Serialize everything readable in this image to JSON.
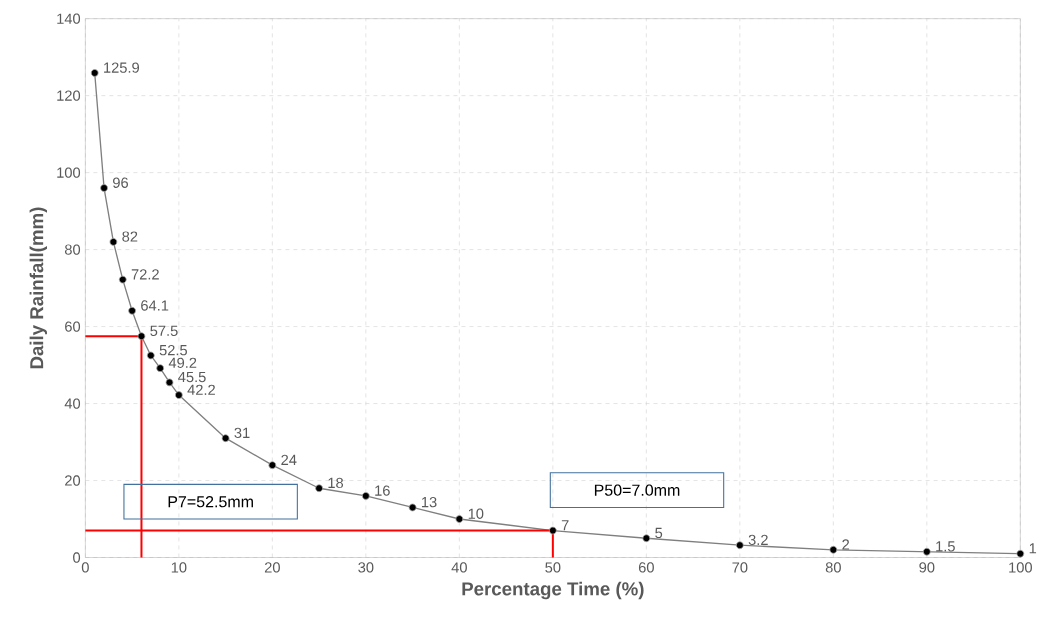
{
  "chart_data": {
    "type": "line",
    "xlabel": "Percentage Time (%)",
    "ylabel": "Daily Rainfall(mm)",
    "xlim": [
      0,
      100
    ],
    "xticks": [
      0,
      10,
      20,
      30,
      40,
      50,
      60,
      70,
      80,
      90,
      100
    ],
    "ylim": [
      0,
      140
    ],
    "yticks": [
      0,
      20,
      40,
      60,
      80,
      100,
      120,
      140
    ],
    "grid": true,
    "marker": "circle",
    "line_style": "solid",
    "series": [
      {
        "type": "line",
        "color": "#7f7f7f",
        "x": [
          1,
          2,
          3,
          4,
          5,
          6,
          7,
          8,
          9,
          10,
          15,
          20,
          25,
          30,
          35,
          40,
          50,
          60,
          70,
          80,
          90,
          100
        ],
        "values": [
          125.9,
          96,
          82,
          72.2,
          64.1,
          57.5,
          52.5,
          49.2,
          45.5,
          42.2,
          31,
          24,
          18,
          16,
          13,
          10,
          7,
          5,
          3.2,
          2,
          1.5,
          1
        ],
        "value_labels": [
          "125.9",
          "96",
          "82",
          "72.2",
          "64.1",
          "57.5",
          "52.5",
          "49.2",
          "45.5",
          "42.2",
          "31",
          "24",
          "18",
          "16",
          "13",
          "10",
          "7",
          "5",
          "3.2",
          "2",
          "1.5",
          "1"
        ]
      },
      {
        "type": "line",
        "color": "#ff0000",
        "marker": "none",
        "x": [
          0,
          6,
          6
        ],
        "values": [
          57.5,
          57.5,
          0
        ]
      },
      {
        "type": "line",
        "color": "#ff0000",
        "marker": "none",
        "x": [
          0,
          50,
          50
        ],
        "values": [
          7,
          7,
          0
        ]
      }
    ],
    "annotations": [
      "P7=52.5mm",
      "P50=7.0mm"
    ]
  }
}
